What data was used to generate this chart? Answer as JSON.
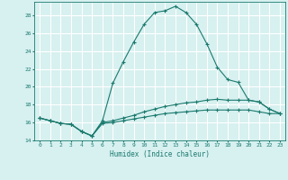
{
  "title": "",
  "xlabel": "Humidex (Indice chaleur)",
  "ylabel": "",
  "bg_color": "#d7f0f0",
  "grid_color": "#ffffff",
  "line_color": "#1a7a6e",
  "xlim": [
    -0.5,
    23.5
  ],
  "ylim": [
    14,
    29.5
  ],
  "yticks": [
    14,
    16,
    18,
    20,
    22,
    24,
    26,
    28
  ],
  "xticks": [
    0,
    1,
    2,
    3,
    4,
    5,
    6,
    7,
    8,
    9,
    10,
    11,
    12,
    13,
    14,
    15,
    16,
    17,
    18,
    19,
    20,
    21,
    22,
    23
  ],
  "series": [
    {
      "x": [
        0,
        1,
        2,
        3,
        4,
        5,
        6,
        7,
        8,
        9,
        10,
        11,
        12,
        13,
        14,
        15,
        16,
        17,
        18,
        19,
        20,
        21,
        22,
        23
      ],
      "y": [
        16.5,
        16.2,
        15.9,
        15.8,
        15.0,
        14.5,
        16.2,
        20.4,
        22.8,
        25.0,
        27.0,
        28.3,
        28.5,
        29.0,
        28.3,
        27.0,
        24.8,
        22.2,
        20.8,
        20.5,
        18.5,
        18.3,
        17.5,
        17.0
      ]
    },
    {
      "x": [
        0,
        1,
        2,
        3,
        4,
        5,
        6,
        7,
        8,
        9,
        10,
        11,
        12,
        13,
        14,
        15,
        16,
        17,
        18,
        19,
        20,
        21,
        22,
        23
      ],
      "y": [
        16.5,
        16.2,
        15.9,
        15.8,
        15.0,
        14.5,
        16.0,
        16.2,
        16.5,
        16.8,
        17.2,
        17.5,
        17.8,
        18.0,
        18.2,
        18.3,
        18.5,
        18.6,
        18.5,
        18.5,
        18.5,
        18.3,
        17.5,
        17.0
      ]
    },
    {
      "x": [
        0,
        1,
        2,
        3,
        4,
        5,
        6,
        7,
        8,
        9,
        10,
        11,
        12,
        13,
        14,
        15,
        16,
        17,
        18,
        19,
        20,
        21,
        22,
        23
      ],
      "y": [
        16.5,
        16.2,
        15.9,
        15.8,
        15.0,
        14.5,
        15.9,
        16.0,
        16.2,
        16.4,
        16.6,
        16.8,
        17.0,
        17.1,
        17.2,
        17.3,
        17.4,
        17.4,
        17.4,
        17.4,
        17.4,
        17.2,
        17.0,
        17.0
      ]
    }
  ]
}
